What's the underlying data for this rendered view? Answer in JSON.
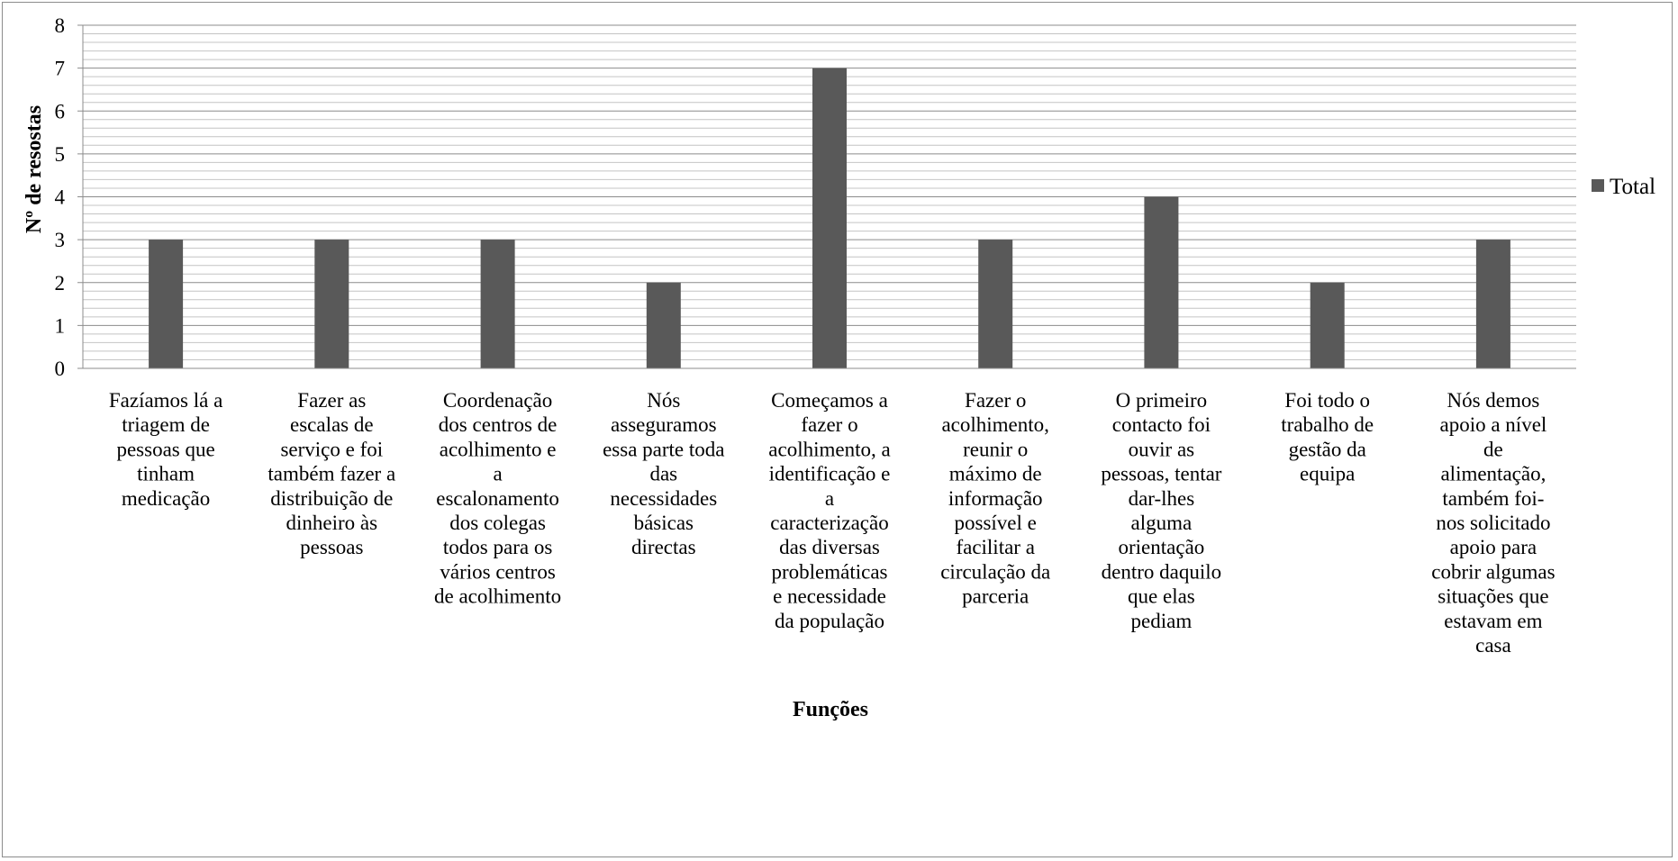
{
  "chart_data": {
    "type": "bar",
    "title": "",
    "xlabel": "Funções",
    "ylabel": "Nº de resostas",
    "ylim": [
      0,
      8
    ],
    "yticks": [
      0,
      1,
      2,
      3,
      4,
      5,
      6,
      7,
      8
    ],
    "minor_gridlines": true,
    "legend_position": "right",
    "categories": [
      [
        "Fazíamos lá a",
        "triagem de",
        "pessoas que",
        "tinham",
        "medicação"
      ],
      [
        "Fazer as",
        "escalas de",
        "serviço e foi",
        "também fazer a",
        "distribuição de",
        "dinheiro às",
        "pessoas"
      ],
      [
        "Coordenação",
        "dos centros de",
        "acolhimento e",
        "a",
        "escalonamento",
        "dos colegas",
        "todos para os",
        "vários centros",
        "de acolhimento"
      ],
      [
        "Nós",
        "asseguramos",
        "essa parte toda",
        "das",
        "necessidades",
        "básicas",
        "directas"
      ],
      [
        "Começamos a",
        "fazer o",
        "acolhimento, a",
        "identificação e",
        "a",
        "caracterização",
        "das diversas",
        "problemáticas",
        "e necessidade",
        "da população"
      ],
      [
        "Fazer o",
        "acolhimento,",
        "reunir o",
        "máximo de",
        "informação",
        "possível e",
        "facilitar a",
        "circulação da",
        "parceria"
      ],
      [
        "O primeiro",
        "contacto foi",
        "ouvir as",
        "pessoas, tentar",
        "dar-lhes",
        "alguma",
        "orientação",
        "dentro daquilo",
        "que elas",
        "pediam"
      ],
      [
        "Foi todo o",
        "trabalho de",
        "gestão da",
        "equipa"
      ],
      [
        "Nós demos",
        "apoio a nível",
        "de",
        "alimentação,",
        "também foi-",
        "nos solicitado",
        "apoio para",
        "cobrir algumas",
        "situações que",
        "estavam em",
        "casa"
      ]
    ],
    "series": [
      {
        "name": "Total",
        "color": "#595959",
        "values": [
          3,
          3,
          3,
          2,
          7,
          3,
          4,
          2,
          3
        ]
      }
    ]
  }
}
